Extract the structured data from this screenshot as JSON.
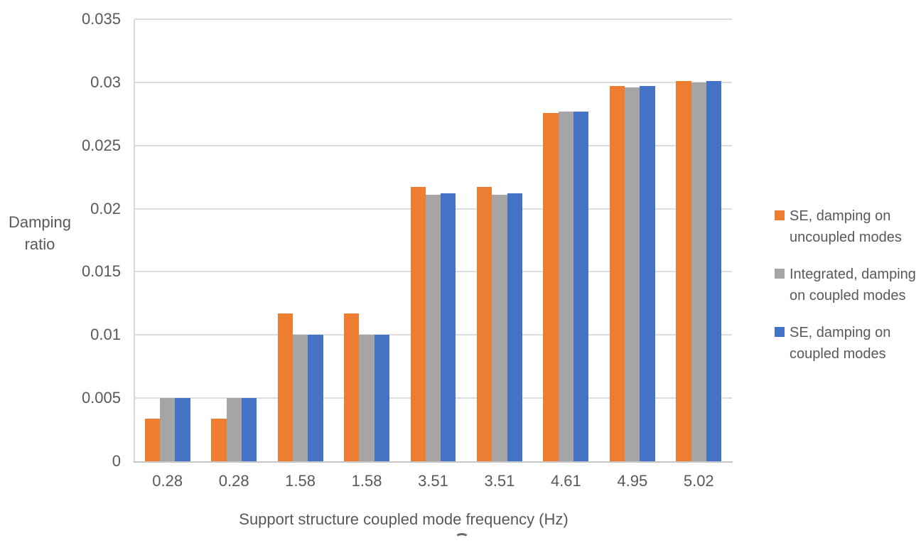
{
  "chart_data": {
    "type": "bar",
    "title": "",
    "xlabel": "Support structure coupled mode frequency (Hz)",
    "ylabel": "Damping ratio",
    "ylabel_lines": [
      "Damping",
      "ratio"
    ],
    "ylim": [
      0,
      0.035
    ],
    "yticks": [
      0,
      0.005,
      0.01,
      0.015,
      0.02,
      0.025,
      0.03,
      0.035
    ],
    "ytick_labels": [
      "0",
      "0.005",
      "0.01",
      "0.015",
      "0.02",
      "0.025",
      "0.03",
      "0.035"
    ],
    "grid": "horizontal",
    "legend_position": "right",
    "categories": [
      "0.28",
      "0.28",
      "1.58",
      "1.58",
      "3.51",
      "3.51",
      "4.61",
      "4.95",
      "5.02"
    ],
    "series": [
      {
        "name": "SE, damping on uncoupled modes",
        "legend_lines": [
          "SE, damping on",
          "uncoupled modes"
        ],
        "color": "#ED7D31",
        "values": [
          0.0034,
          0.0034,
          0.0117,
          0.0117,
          0.0217,
          0.0217,
          0.0276,
          0.0297,
          0.0301
        ]
      },
      {
        "name": "Integrated, damping on coupled modes",
        "legend_lines": [
          "Integrated, damping",
          "on coupled modes"
        ],
        "color": "#A5A5A5",
        "values": [
          0.005,
          0.005,
          0.01,
          0.01,
          0.0211,
          0.0211,
          0.0277,
          0.0296,
          0.03
        ]
      },
      {
        "name": "SE, damping on coupled modes",
        "legend_lines": [
          "SE, damping on",
          "coupled modes"
        ],
        "color": "#4472C4",
        "values": [
          0.005,
          0.005,
          0.01,
          0.01,
          0.0212,
          0.0212,
          0.0277,
          0.0297,
          0.0301
        ]
      }
    ],
    "colors": {
      "series1": "#ED7D31",
      "series2": "#A5A5A5",
      "series3": "#4472C4",
      "text": "#595959",
      "gridline": "#DDDDDD"
    }
  }
}
